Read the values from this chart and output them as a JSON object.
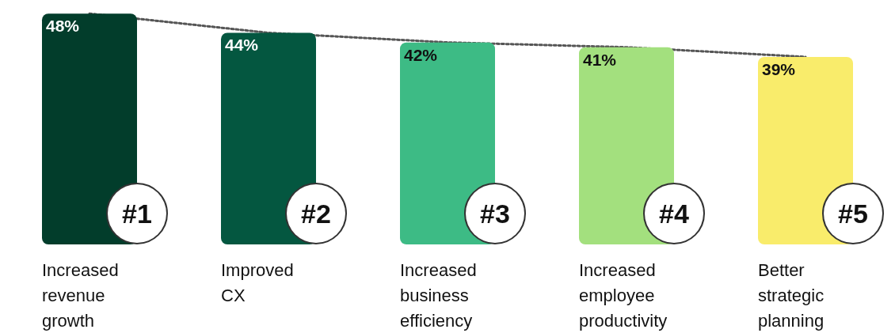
{
  "chart_data": {
    "type": "bar",
    "categories": [
      "Increased revenue growth",
      "Improved CX",
      "Increased business efficiency",
      "Increased employee productivity",
      "Better strategic planning"
    ],
    "series": [
      {
        "values": [
          48,
          44,
          42,
          41,
          39
        ],
        "colors": [
          "#023d2b",
          "#045740",
          "#3dbb85",
          "#a3e07e",
          "#f9ec6b"
        ],
        "value_labels": [
          "48%",
          "44%",
          "42%",
          "41%",
          "39%"
        ]
      },
      {
        "type": "line",
        "values": [
          48,
          44,
          42,
          41,
          39
        ],
        "color": "#555555",
        "line_style": "dotted",
        "marker": "none"
      }
    ],
    "annotations": [
      "#1",
      "#2",
      "#3",
      "#4",
      "#5"
    ],
    "grid": false
  }
}
